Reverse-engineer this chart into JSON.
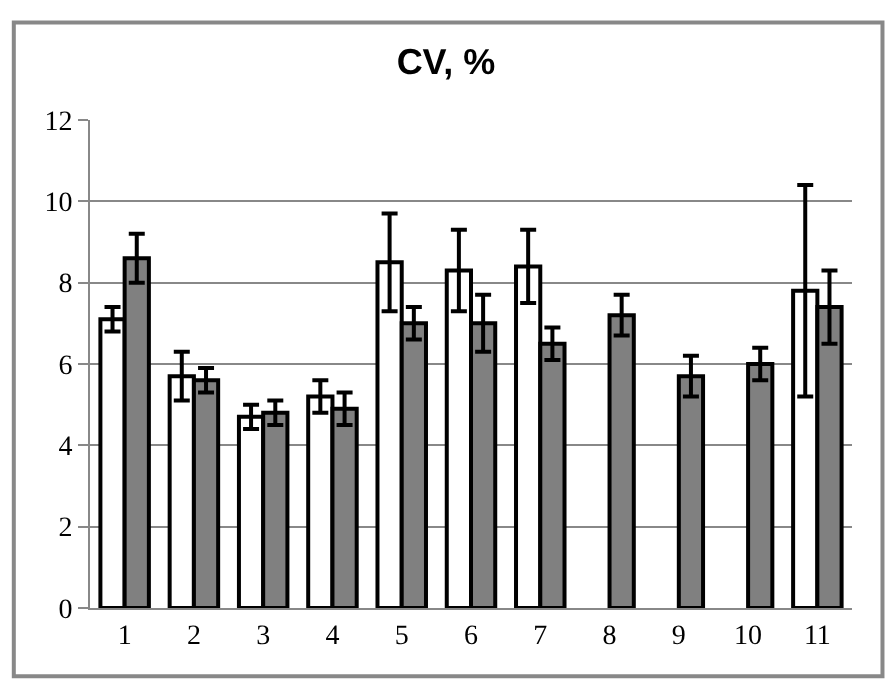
{
  "chart_data": {
    "type": "bar",
    "title": "CV, %",
    "categories": [
      "1",
      "2",
      "3",
      "4",
      "5",
      "6",
      "7",
      "8",
      "9",
      "10",
      "11"
    ],
    "series": [
      {
        "color": "#ffffff",
        "values": [
          7.1,
          5.7,
          4.7,
          5.2,
          8.5,
          8.3,
          8.4,
          null,
          null,
          null,
          7.8
        ],
        "errors": [
          0.3,
          0.6,
          0.3,
          0.4,
          1.2,
          1.0,
          0.9,
          null,
          null,
          null,
          2.6
        ]
      },
      {
        "color": "#808080",
        "values": [
          8.6,
          5.6,
          4.8,
          4.9,
          7.0,
          7.0,
          6.5,
          7.2,
          5.7,
          6.0,
          7.4
        ],
        "errors": [
          0.6,
          0.3,
          0.3,
          0.4,
          0.4,
          0.7,
          0.4,
          0.5,
          0.5,
          0.4,
          0.9
        ]
      }
    ],
    "ylim": [
      0,
      12
    ],
    "yticks": [
      0,
      2,
      4,
      6,
      8,
      10,
      12
    ],
    "grid": "y",
    "legend": false
  }
}
